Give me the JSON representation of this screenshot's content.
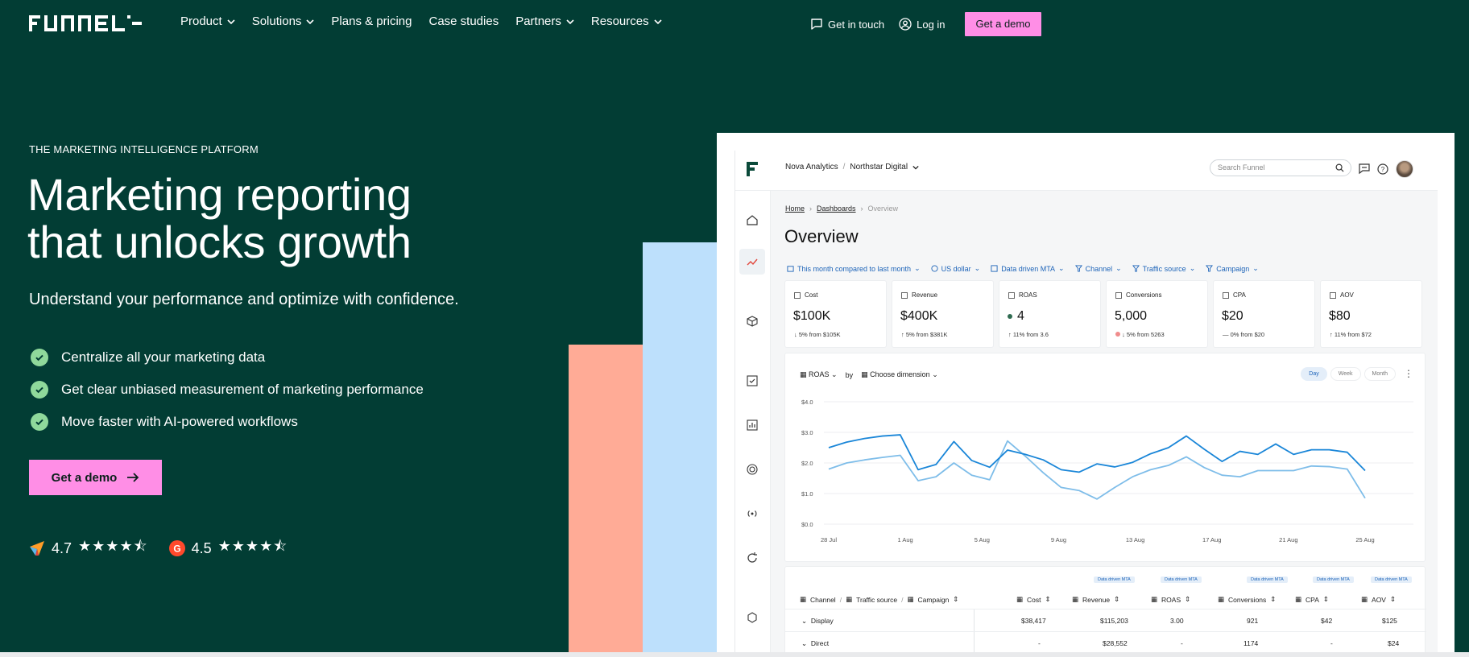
{
  "nav": {
    "items": [
      {
        "label": "Product",
        "has_menu": true
      },
      {
        "label": "Solutions",
        "has_menu": true
      },
      {
        "label": "Plans & pricing",
        "has_menu": false
      },
      {
        "label": "Case studies",
        "has_menu": false
      },
      {
        "label": "Partners",
        "has_menu": true
      },
      {
        "label": "Resources",
        "has_menu": true
      }
    ],
    "contact": "Get in touch",
    "login": "Log in",
    "demo": "Get a demo"
  },
  "hero": {
    "eyebrow": "THE MARKETING INTELLIGENCE PLATFORM",
    "headline_line1": "Marketing reporting",
    "headline_line2": "that unlocks growth",
    "subhead": "Understand your performance and optimize with confidence.",
    "bullets": [
      "Centralize all your marketing data",
      "Get clear unbiased measurement of marketing performance",
      "Move faster with AI-powered workflows"
    ],
    "cta": "Get a demo",
    "ratings": [
      {
        "source_icon": "capterra-icon",
        "score": "4.7",
        "stars": 4.5
      },
      {
        "source_icon": "g2-icon",
        "score": "4.5",
        "stars": 4.5
      }
    ]
  },
  "colors": {
    "hero_bg": "#023d34",
    "pink": "#ff8ee6",
    "salmon": "#ffab96",
    "light_blue": "#bde0fc",
    "check_green": "#8fd99b",
    "accent_blue": "#1c63b8"
  },
  "dashboard": {
    "org": "Nova Analytics",
    "workspace": "Northstar Digital",
    "search_placeholder": "Search Funnel",
    "breadcrumb": [
      "Home",
      "Dashboards",
      "Overview"
    ],
    "title": "Overview",
    "filters": [
      "This month compared to last month",
      "US dollar",
      "Data driven MTA",
      "Channel",
      "Traffic source",
      "Campaign"
    ],
    "kpis": [
      {
        "label": "Cost",
        "value": "$100K",
        "delta": "↓ 5% from $105K",
        "dot": ""
      },
      {
        "label": "Revenue",
        "value": "$400K",
        "delta": "↑ 5% from $381K",
        "dot": ""
      },
      {
        "label": "ROAS",
        "value": "4",
        "delta": "↑ 11% from 3.6",
        "dot": "#2f6b50"
      },
      {
        "label": "Conversions",
        "value": "5,000",
        "delta": "↓ 5% from 5263",
        "dot": "#f08c8c"
      },
      {
        "label": "CPA",
        "value": "$20",
        "delta": "— 0% from $20",
        "dot": ""
      },
      {
        "label": "AOV",
        "value": "$80",
        "delta": "↑ 11% from $72",
        "dot": ""
      }
    ],
    "chart_head": {
      "metric": "ROAS",
      "by": "by",
      "dimension": "Choose dimension"
    },
    "granularity": [
      "Day",
      "Week",
      "Month"
    ],
    "table": {
      "tags": [
        "Data driven MTA",
        "Data driven MTA",
        "Data driven MTA",
        "Data driven MTA",
        "Data driven MTA"
      ],
      "dim_headers": [
        "Channel",
        "Traffic source",
        "Campaign"
      ],
      "metric_headers": [
        "Cost",
        "Revenue",
        "ROAS",
        "Conversions",
        "CPA",
        "AOV"
      ],
      "rows": [
        {
          "name": "Display",
          "values": [
            "$38,417",
            "$115,203",
            "3.00",
            "921",
            "$42",
            "$125"
          ]
        },
        {
          "name": "Direct",
          "values": [
            "-",
            "$28,552",
            "-",
            "1174",
            "-",
            "$24"
          ]
        }
      ]
    }
  },
  "chart_data": {
    "type": "line",
    "title": "",
    "xlabel": "",
    "ylabel": "",
    "x_ticks": [
      "28 Jul",
      "1 Aug",
      "5 Aug",
      "9 Aug",
      "13 Aug",
      "17 Aug",
      "21 Aug",
      "25 Aug"
    ],
    "y_ticks": [
      "$0.0",
      "$1.0",
      "$2.0",
      "$3.0",
      "$4.0"
    ],
    "ylim": [
      0,
      4
    ],
    "grid": true,
    "series": [
      {
        "color": "#1a86d8",
        "values": [
          2.5,
          2.68,
          2.8,
          2.88,
          2.92,
          1.78,
          1.95,
          2.7,
          2.08,
          1.86,
          2.42,
          2.28,
          2.1,
          1.78,
          1.7,
          1.97,
          1.87,
          2.02,
          2.3,
          2.5,
          2.88,
          2.45,
          2.05,
          2.38,
          2.28,
          2.62,
          2.28,
          2.43,
          2.43,
          2.35,
          1.75
        ]
      },
      {
        "color": "#7ebde9",
        "values": [
          1.8,
          2.0,
          2.1,
          2.18,
          2.25,
          1.42,
          1.55,
          2.0,
          1.6,
          1.45,
          2.72,
          2.22,
          1.68,
          1.2,
          1.1,
          0.82,
          1.2,
          1.55,
          1.78,
          1.92,
          2.2,
          1.85,
          1.6,
          1.55,
          1.75,
          1.75,
          1.75,
          1.9,
          1.88,
          1.8,
          0.85
        ]
      }
    ]
  }
}
